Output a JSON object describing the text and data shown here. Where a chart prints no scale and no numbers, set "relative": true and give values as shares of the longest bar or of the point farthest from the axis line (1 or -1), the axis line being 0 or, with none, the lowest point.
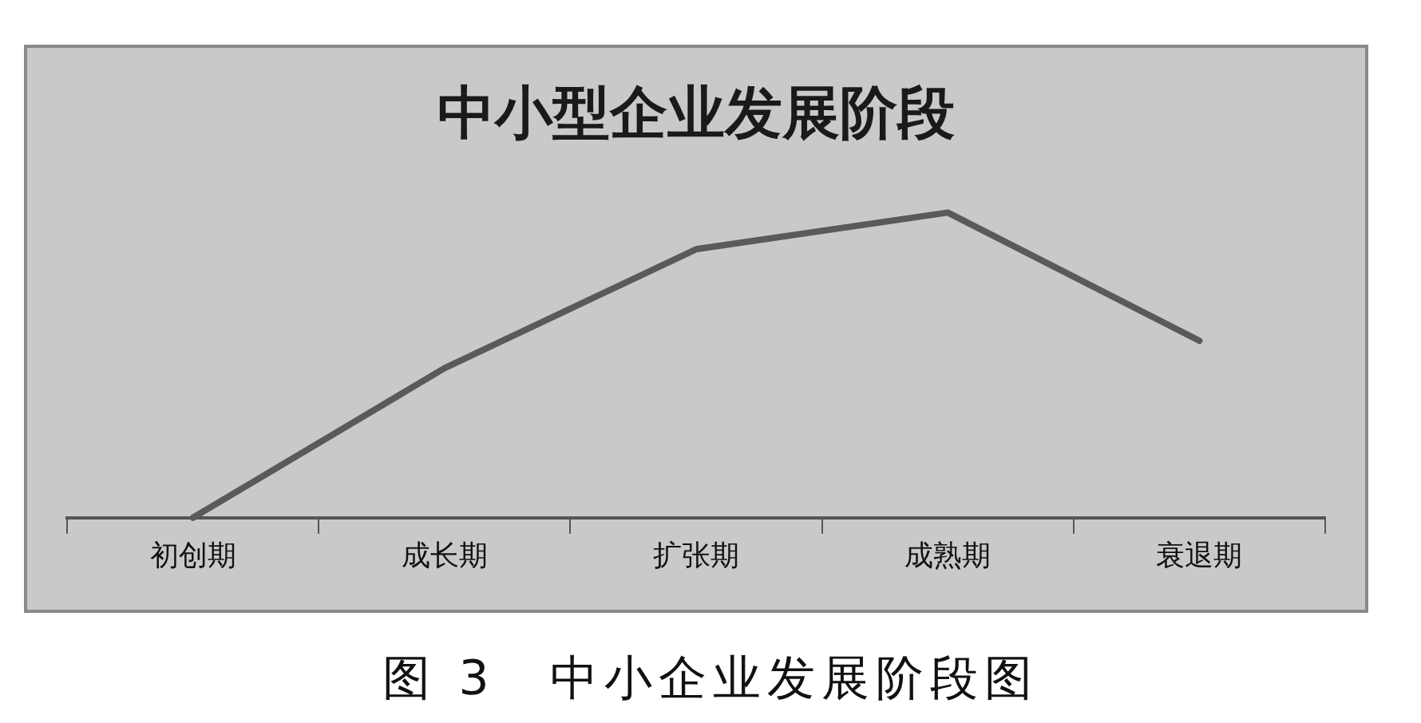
{
  "chart_data": {
    "type": "line",
    "title": "中小型企业发展阶段",
    "categories": [
      "初创期",
      "成长期",
      "扩张期",
      "成熟期",
      "衰退期"
    ],
    "series": [
      {
        "color": "#5a5a5a",
        "values": [
          0,
          0.49,
          0.88,
          1,
          0.58
        ]
      }
    ],
    "relative": true,
    "marker": "none",
    "legend": false,
    "grid": false,
    "annotations": [
      "图 3　中小企业发展阶段图"
    ]
  }
}
